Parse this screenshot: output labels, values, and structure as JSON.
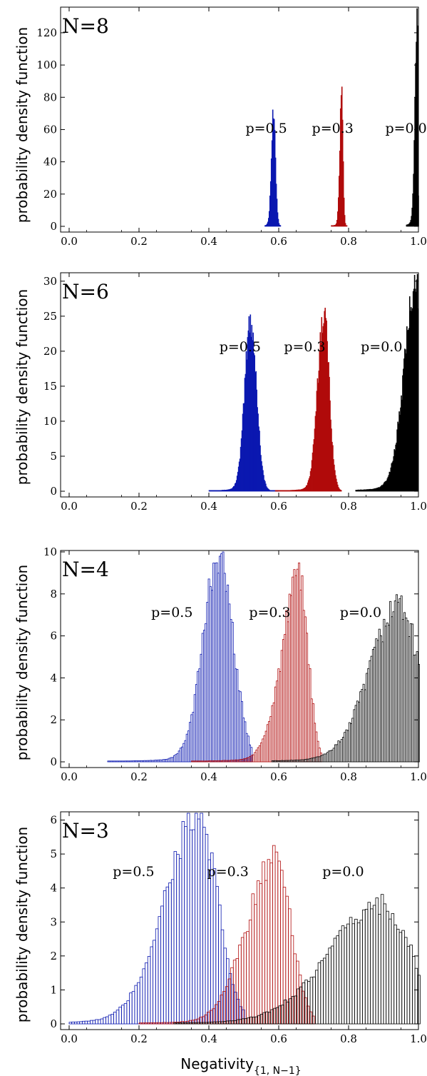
{
  "chart_data": {
    "type": "histogram",
    "xlabel": "Negativity",
    "xlabel_subscript": "{1, N−1}",
    "ylabel": "probability density function",
    "xlim": [
      0,
      1
    ],
    "x_ticks": [
      "0.0",
      "0.2",
      "0.4",
      "0.6",
      "0.8",
      "1.0"
    ],
    "colors": {
      "p=0.5": "#0b18b0",
      "p=0.3": "#b00b0b",
      "p=0.0": "#000000"
    },
    "panels": [
      {
        "label": "N=8",
        "ylim": [
          0,
          135
        ],
        "y_ticks": [
          0,
          20,
          40,
          60,
          80,
          100,
          120
        ],
        "filled": true,
        "series": [
          {
            "name": "p=0.5",
            "label_pos": [
              0.505,
              58
            ],
            "peak_x": 0.585,
            "peak_y": 68,
            "sigma_left": 0.006,
            "sigma_right": 0.006,
            "range": [
              0.56,
              0.605
            ]
          },
          {
            "name": "p=0.3",
            "label_pos": [
              0.695,
              58
            ],
            "peak_x": 0.78,
            "peak_y": 82,
            "sigma_left": 0.005,
            "sigma_right": 0.004,
            "range": [
              0.75,
              0.795
            ]
          },
          {
            "name": "p=0.0",
            "label_pos": [
              0.905,
              58
            ],
            "peak_x": 0.998,
            "peak_y": 135,
            "sigma_left": 0.007,
            "sigma_right": 0.001,
            "range": [
              0.965,
              1.0
            ]
          }
        ]
      },
      {
        "label": "N=6",
        "ylim": [
          0,
          31
        ],
        "y_ticks": [
          0,
          5,
          10,
          15,
          20,
          25,
          30
        ],
        "filled": true,
        "series": [
          {
            "name": "p=0.5",
            "label_pos": [
              0.43,
              20
            ],
            "peak_x": 0.52,
            "peak_y": 24,
            "sigma_left": 0.017,
            "sigma_right": 0.017,
            "range": [
              0.4,
              0.6
            ]
          },
          {
            "name": "p=0.3",
            "label_pos": [
              0.615,
              20
            ],
            "peak_x": 0.73,
            "peak_y": 25.2,
            "sigma_left": 0.018,
            "sigma_right": 0.015,
            "range": [
              0.59,
              0.78
            ]
          },
          {
            "name": "p=0.0",
            "label_pos": [
              0.835,
              20
            ],
            "peak_x": 0.997,
            "peak_y": 30.5,
            "sigma_left": 0.035,
            "sigma_right": 0.003,
            "range": [
              0.82,
              1.0
            ]
          }
        ]
      },
      {
        "label": "N=4",
        "ylim": [
          0,
          10
        ],
        "y_ticks": [
          0,
          2,
          4,
          6,
          8,
          10
        ],
        "filled": false,
        "series": [
          {
            "name": "p=0.5",
            "label_pos": [
              0.235,
              6.9
            ],
            "peak_x": 0.43,
            "peak_y": 9.7,
            "sigma_left": 0.045,
            "sigma_right": 0.04,
            "range": [
              0.11,
              0.52
            ]
          },
          {
            "name": "p=0.3",
            "label_pos": [
              0.515,
              6.9
            ],
            "peak_x": 0.66,
            "peak_y": 8.5,
            "sigma_left": 0.05,
            "sigma_right": 0.025,
            "range": [
              0.35,
              0.72
            ]
          },
          {
            "name": "p=0.0",
            "label_pos": [
              0.775,
              6.9
            ],
            "peak_x": 0.95,
            "peak_y": 7.4,
            "sigma_left": 0.085,
            "sigma_right": 0.05,
            "range": [
              0.58,
              1.0
            ]
          }
        ]
      },
      {
        "label": "N=3",
        "ylim": [
          0,
          6.2
        ],
        "y_ticks": [
          0,
          1,
          2,
          3,
          4,
          5,
          6
        ],
        "filled": false,
        "series": [
          {
            "name": "p=0.5",
            "label_pos": [
              0.125,
              4.35
            ],
            "peak_x": 0.37,
            "peak_y": 6.0,
            "sigma_left": 0.095,
            "sigma_right": 0.055,
            "range": [
              0.0,
              0.5
            ]
          },
          {
            "name": "p=0.3",
            "label_pos": [
              0.395,
              4.35
            ],
            "peak_x": 0.59,
            "peak_y": 4.7,
            "sigma_left": 0.08,
            "sigma_right": 0.045,
            "range": [
              0.2,
              0.7
            ]
          },
          {
            "name": "p=0.0",
            "label_pos": [
              0.725,
              4.35
            ],
            "peak_x": 0.9,
            "peak_y": 3.45,
            "sigma_left": 0.15,
            "sigma_right": 0.08,
            "range": [
              0.3,
              1.0
            ]
          }
        ]
      }
    ]
  }
}
